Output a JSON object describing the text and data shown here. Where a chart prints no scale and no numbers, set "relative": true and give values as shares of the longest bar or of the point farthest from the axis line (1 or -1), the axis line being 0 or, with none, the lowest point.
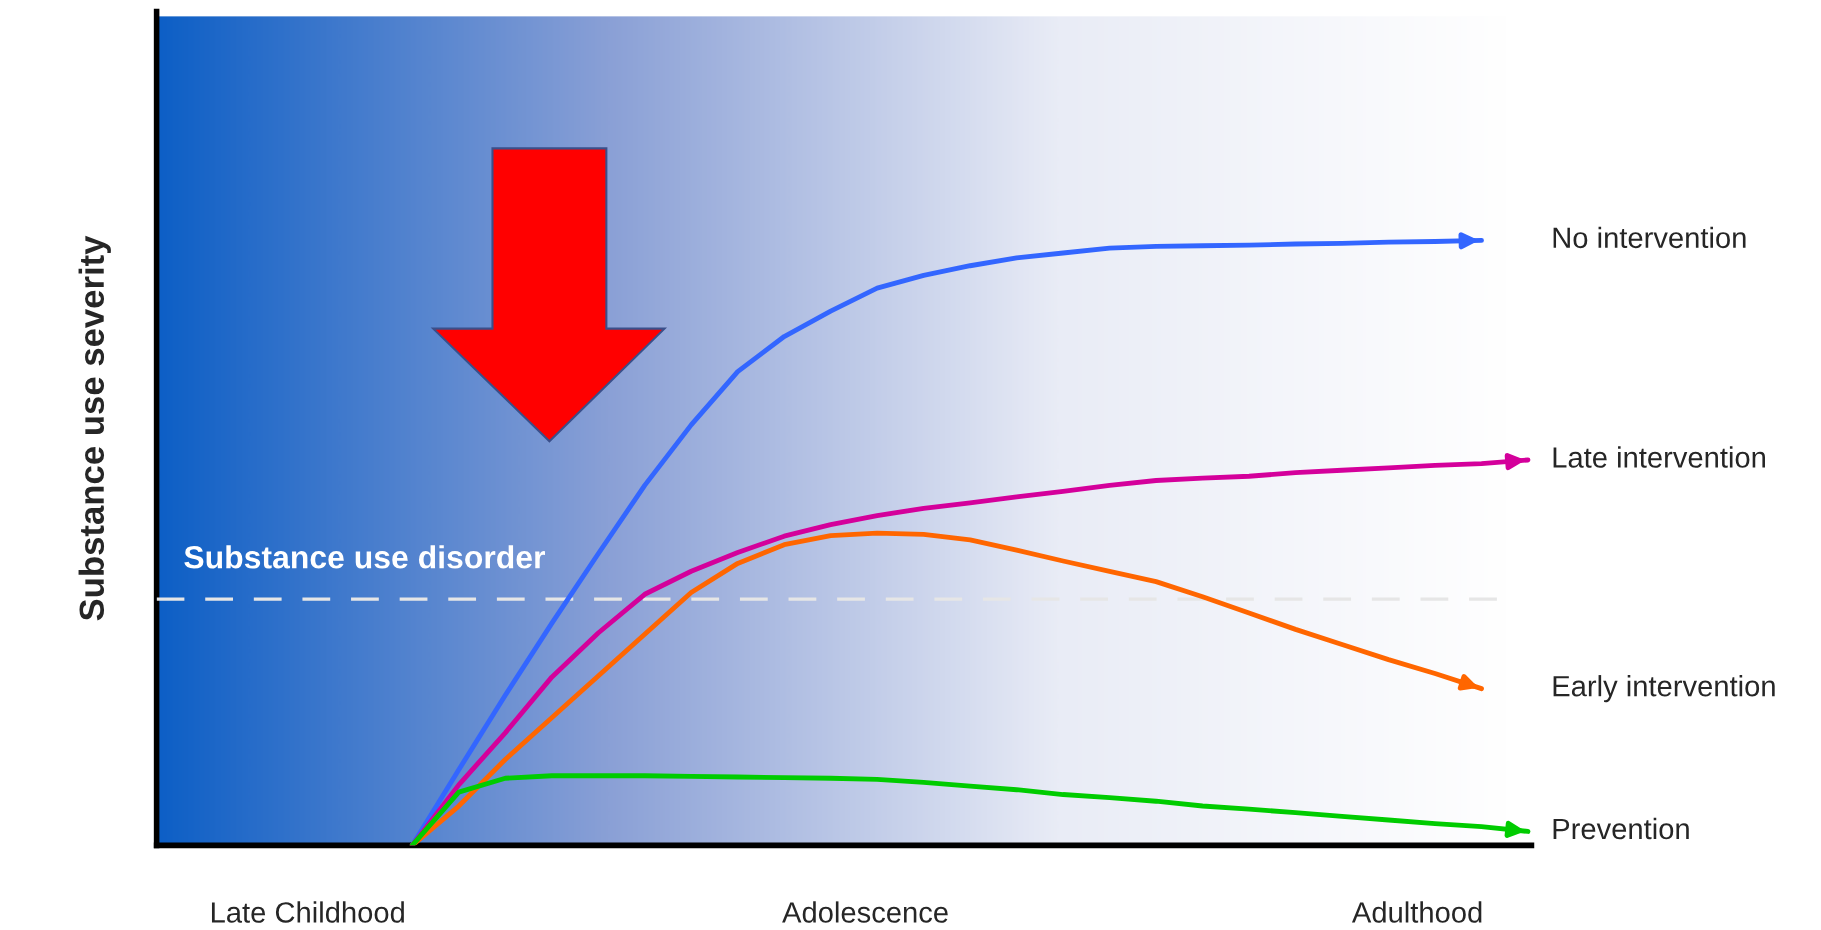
{
  "chart_data": {
    "type": "line",
    "relative": true,
    "categories": [
      null,
      null,
      null,
      null,
      null,
      null,
      null,
      null,
      null,
      null,
      null,
      null,
      null,
      null,
      null,
      null,
      null,
      null,
      null,
      null,
      null,
      null,
      null,
      null,
      null
    ],
    "legend": "right",
    "marker": "none",
    "line_style": "solid",
    "series": [
      {
        "name": "No intervention",
        "color": "#3366ff",
        "values": [
          0,
          0.125,
          0.248,
          0.367,
          0.482,
          0.595,
          0.695,
          0.783,
          0.841,
          0.883,
          0.921,
          0.942,
          0.958,
          0.971,
          0.979,
          0.987,
          0.99,
          0.991,
          0.992,
          0.994,
          0.995,
          0.997,
          0.998,
          1.0,
          null
        ]
      },
      {
        "name": "Late intervention",
        "color": "#d4009b",
        "values": [
          0,
          0.1,
          0.186,
          0.278,
          0.351,
          0.415,
          0.453,
          0.484,
          0.511,
          0.53,
          0.545,
          0.557,
          0.566,
          0.576,
          0.585,
          0.595,
          0.603,
          0.607,
          0.61,
          0.616,
          0.62,
          0.624,
          0.628,
          0.631,
          0.637
        ]
      },
      {
        "name": "Early intervention",
        "color": "#ff6600",
        "values": [
          0,
          0.065,
          0.142,
          0.211,
          0.28,
          0.349,
          0.418,
          0.466,
          0.497,
          0.512,
          0.516,
          0.514,
          0.505,
          0.488,
          0.47,
          0.453,
          0.436,
          0.411,
          0.384,
          0.357,
          0.332,
          0.307,
          0.284,
          0.259,
          null
        ]
      },
      {
        "name": "Prevention",
        "color": "#00cc00",
        "values": [
          0,
          0.088,
          0.111,
          0.115,
          0.115,
          0.115,
          0.114,
          0.113,
          0.112,
          0.111,
          0.109,
          0.104,
          0.098,
          0.092,
          0.084,
          0.079,
          0.073,
          0.065,
          0.06,
          0.054,
          0.048,
          0.042,
          0.036,
          0.031,
          0.023
        ]
      }
    ],
    "ref_lines": [
      {
        "axis": "y",
        "value": 0.407,
        "label": "Substance use disorder",
        "color": "#e6e6e6",
        "line_style": "dashed"
      }
    ],
    "annotations": [
      "Late Childhood",
      "Adolescence",
      "Adulthood",
      "Substance use severity"
    ]
  }
}
